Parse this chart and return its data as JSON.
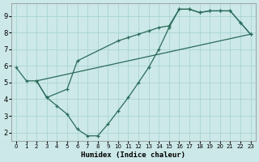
{
  "xlabel": "Humidex (Indice chaleur)",
  "bg_color": "#cce8e8",
  "line_color": "#2a6b5a",
  "grid_color": "#aad4d4",
  "xlim": [
    -0.5,
    23.5
  ],
  "ylim": [
    1.5,
    9.75
  ],
  "xticks": [
    0,
    1,
    2,
    3,
    4,
    5,
    6,
    7,
    8,
    9,
    10,
    11,
    12,
    13,
    14,
    15,
    16,
    17,
    18,
    19,
    20,
    21,
    22,
    23
  ],
  "yticks": [
    2,
    3,
    4,
    5,
    6,
    7,
    8,
    9
  ],
  "series": [
    {
      "x": [
        0,
        1,
        2,
        3,
        4,
        5,
        6,
        7,
        8,
        9,
        10,
        11,
        12,
        13,
        14,
        15,
        16,
        17,
        18,
        19,
        20,
        21,
        22,
        23
      ],
      "y": [
        5.9,
        5.1,
        5.1,
        4.1,
        3.6,
        3.1,
        2.2,
        1.8,
        1.8,
        2.5,
        3.3,
        4.1,
        5.0,
        5.9,
        7.0,
        8.3,
        9.4,
        9.4,
        9.2,
        9.3,
        9.3,
        9.3,
        8.6,
        7.9
      ],
      "marker": true
    },
    {
      "x": [
        2,
        3,
        5,
        6,
        10,
        11,
        12,
        13,
        14,
        15,
        16,
        17,
        18,
        19,
        20,
        21,
        22,
        23
      ],
      "y": [
        5.1,
        4.1,
        4.6,
        6.3,
        7.5,
        7.7,
        7.9,
        8.1,
        8.3,
        8.4,
        9.4,
        9.4,
        9.2,
        9.3,
        9.3,
        9.3,
        8.6,
        7.9
      ],
      "marker": true
    },
    {
      "x": [
        2,
        23
      ],
      "y": [
        5.1,
        7.9
      ],
      "marker": false
    }
  ]
}
